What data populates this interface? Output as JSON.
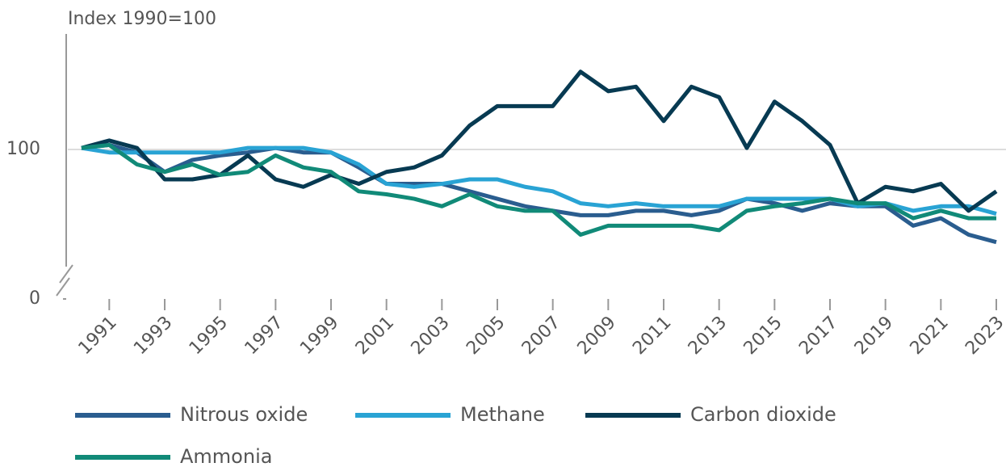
{
  "chart_data": {
    "type": "line",
    "y_label": "Index 1990=100",
    "x": [
      1990,
      1991,
      1992,
      1993,
      1994,
      1995,
      1996,
      1997,
      1998,
      1999,
      2000,
      2001,
      2002,
      2003,
      2004,
      2005,
      2006,
      2007,
      2008,
      2009,
      2010,
      2011,
      2012,
      2013,
      2014,
      2015,
      2016,
      2017,
      2018,
      2019,
      2020,
      2021,
      2022,
      2023
    ],
    "xlim": [
      1990,
      2023
    ],
    "xticks": [
      1991,
      1993,
      1995,
      1997,
      1999,
      2001,
      2003,
      2005,
      2007,
      2009,
      2011,
      2013,
      2015,
      2017,
      2019,
      2021,
      2023
    ],
    "ylim": [
      0,
      175
    ],
    "yticks": [
      0,
      100
    ],
    "grid": true,
    "series": [
      {
        "name": "Nitrous oxide",
        "color": "#2a5d8f",
        "values": [
          101,
          103,
          98,
          85,
          93,
          96,
          98,
          101,
          98,
          98,
          88,
          77,
          77,
          77,
          72,
          67,
          62,
          59,
          56,
          56,
          59,
          59,
          56,
          59,
          67,
          64,
          59,
          64,
          62,
          62,
          49,
          54,
          43,
          38
        ]
      },
      {
        "name": "Methane",
        "color": "#29a3d4",
        "values": [
          101,
          98,
          98,
          98,
          98,
          98,
          101,
          101,
          101,
          98,
          90,
          77,
          75,
          77,
          80,
          80,
          75,
          72,
          64,
          62,
          64,
          62,
          62,
          62,
          67,
          67,
          67,
          67,
          62,
          64,
          59,
          62,
          62,
          57
        ]
      },
      {
        "name": "Carbon dioxide",
        "color": "#073a52",
        "values": [
          101,
          106,
          101,
          80,
          80,
          83,
          96,
          80,
          75,
          83,
          77,
          85,
          88,
          96,
          116,
          129,
          129,
          129,
          152,
          139,
          142,
          119,
          142,
          135,
          101,
          132,
          119,
          103,
          64,
          75,
          72,
          77,
          59,
          72
        ]
      },
      {
        "name": "Ammonia",
        "color": "#118a78",
        "values": [
          101,
          103,
          90,
          85,
          90,
          83,
          85,
          96,
          88,
          85,
          72,
          70,
          67,
          62,
          70,
          62,
          59,
          59,
          43,
          49,
          49,
          49,
          49,
          46,
          59,
          62,
          64,
          67,
          64,
          64,
          54,
          59,
          54,
          54
        ]
      }
    ]
  }
}
